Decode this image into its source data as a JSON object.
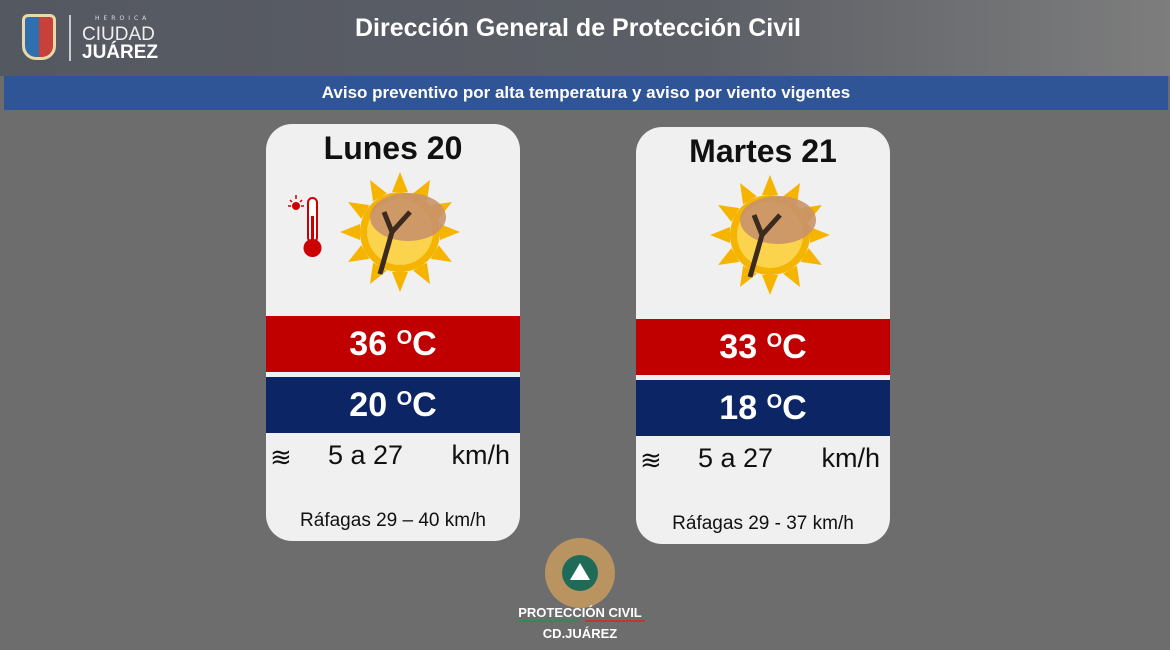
{
  "header": {
    "title": "Dirección General de Protección Civil",
    "logo_small": "HEROICA",
    "logo_city": "CIUDAD",
    "logo_name": "JUÁREZ"
  },
  "banner": "Aviso preventivo por alta temperatura y aviso por viento vigentes",
  "colors": {
    "high": "#c00000",
    "low": "#0b2565",
    "banner": "#2f5597"
  },
  "days": [
    {
      "name": "Lunes 20",
      "high": "36",
      "low": "20",
      "unit": "C",
      "deg": "O",
      "wind": "5 a 27",
      "wind_unit": "km/h",
      "gusts": "Ráfagas  29 – 40 km/h",
      "icons": [
        "thermometer-hot-icon",
        "sun-wind-icon"
      ]
    },
    {
      "name": "Martes 21",
      "high": "33",
      "low": "18",
      "unit": "C",
      "deg": "O",
      "wind": "5 a 27",
      "wind_unit": "km/h",
      "gusts": "Ráfagas 29 - 37   km/h",
      "icons": [
        "sun-wind-icon"
      ]
    }
  ],
  "footer": {
    "org": "PROTECCIÓN CIVIL",
    "city": "CD.JUÁREZ"
  }
}
